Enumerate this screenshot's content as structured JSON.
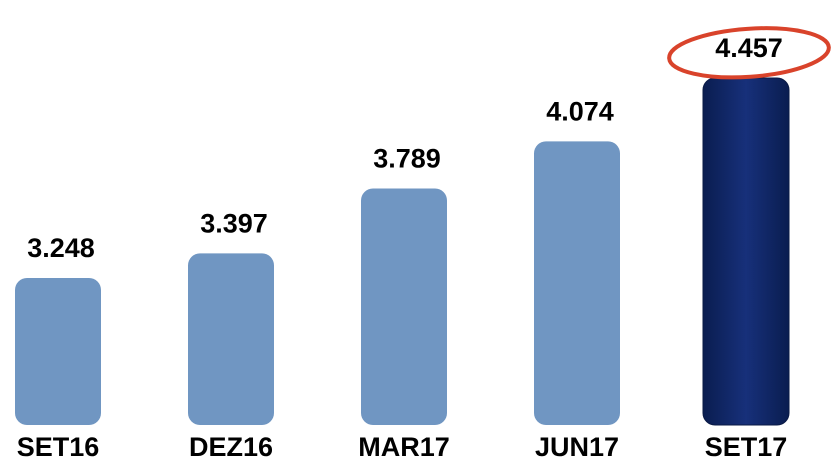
{
  "chart_data": {
    "type": "bar",
    "categories": [
      "SET16",
      "DEZ16",
      "MAR17",
      "JUN17",
      "SET17"
    ],
    "values": [
      3.248,
      3.397,
      3.789,
      4.074,
      4.457
    ],
    "colors": [
      "#7096c2",
      "#7096c2",
      "#7096c2",
      "#7096c2",
      "#0f2561"
    ]
  }
}
